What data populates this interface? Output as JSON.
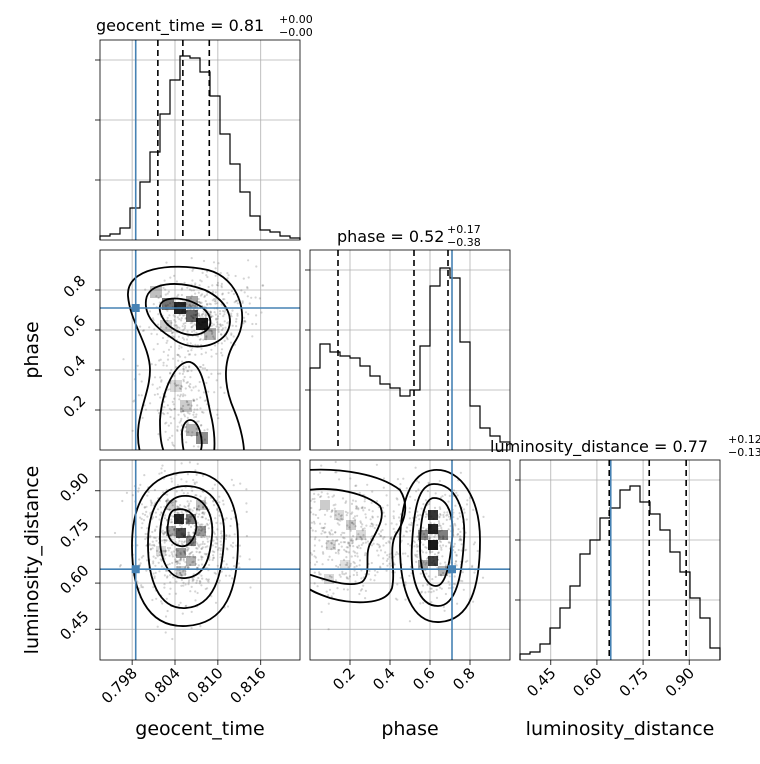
{
  "chart_data": {
    "type": "corner",
    "parameters": [
      "geocent_time",
      "phase",
      "luminosity_distance"
    ],
    "titles": [
      {
        "label": "geocent_time = 0.81",
        "plus": "+0.00",
        "minus": "−0.00"
      },
      {
        "label": "phase = 0.52",
        "plus": "+0.17",
        "minus": "−0.38"
      },
      {
        "label": "luminosity_distance = 0.77",
        "plus": "+0.12",
        "minus": "−0.13"
      }
    ],
    "axes": {
      "geocent_time": {
        "range": [
          0.7935,
          0.8215
        ],
        "ticks": [
          0.798,
          0.804,
          0.81,
          0.816
        ],
        "tick_labels": [
          "0.798",
          "0.804",
          "0.810",
          "0.816"
        ]
      },
      "phase": {
        "range": [
          0.0,
          1.0
        ],
        "ticks": [
          0.2,
          0.4,
          0.6,
          0.8
        ],
        "tick_labels": [
          "0.2",
          "0.4",
          "0.6",
          "0.8"
        ]
      },
      "luminosity_distance": {
        "range": [
          0.35,
          1.0
        ],
        "ticks": [
          0.45,
          0.6,
          0.75,
          0.9
        ],
        "tick_labels": [
          "0.45",
          "0.60",
          "0.75",
          "0.90"
        ]
      }
    },
    "truths": {
      "geocent_time": 0.7985,
      "phase": 0.71,
      "luminosity_distance": 0.645
    },
    "quantiles": {
      "geocent_time": [
        0.8016,
        0.8051,
        0.8088
      ],
      "phase": [
        0.14,
        0.52,
        0.69
      ],
      "luminosity_distance": [
        0.64,
        0.77,
        0.89
      ]
    },
    "histograms": {
      "geocent_time": [
        2,
        3,
        6,
        16,
        29,
        44,
        63,
        80,
        92,
        91,
        84,
        72,
        53,
        38,
        24,
        12,
        5,
        4,
        2,
        1
      ],
      "phase": [
        41,
        53,
        49,
        47,
        46,
        42,
        37,
        33,
        31,
        27,
        30,
        52,
        82,
        91,
        86,
        54,
        22,
        11,
        7,
        4
      ],
      "luminosity_distance": [
        3,
        4,
        8,
        16,
        26,
        37,
        53,
        60,
        71,
        76,
        85,
        87,
        79,
        73,
        65,
        54,
        44,
        31,
        21,
        6
      ]
    },
    "hist_ylim": [
      0,
      100
    ],
    "grid": true
  }
}
